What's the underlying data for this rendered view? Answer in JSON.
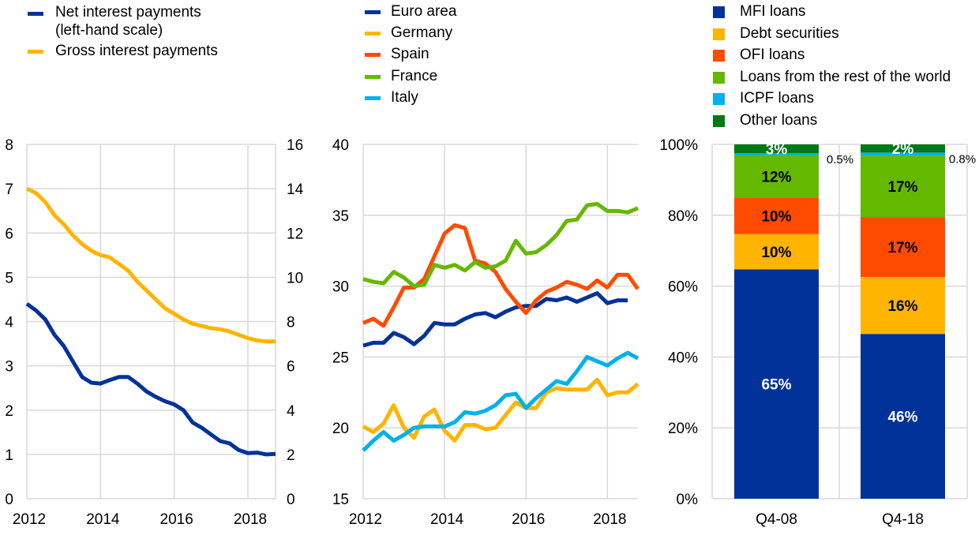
{
  "colors": {
    "navy": "#003299",
    "yellow": "#FFB400",
    "red": "#FF4B00",
    "green": "#65B800",
    "cyan": "#00B1EA",
    "darkgreen": "#007816",
    "grid": "#D9D9D9"
  },
  "chart_data": [
    {
      "type": "line",
      "x_start": 2012,
      "x_step": 0.25,
      "xticks": [
        "2012",
        "2014",
        "2016",
        "2018"
      ],
      "xlim": [
        2012,
        2018.75
      ],
      "ylim_left": [
        0,
        8
      ],
      "yticks_left": [
        "0",
        "1",
        "2",
        "3",
        "4",
        "5",
        "6",
        "7",
        "8"
      ],
      "ylim_right": [
        0,
        16
      ],
      "yticks_right": [
        "0",
        "2",
        "4",
        "6",
        "8",
        "10",
        "12",
        "14",
        "16"
      ],
      "grid": true,
      "legend": [
        "Net interest payments",
        "(left-hand scale)",
        "Gross interest payments"
      ],
      "series": [
        {
          "name": "Net interest payments (left-hand scale)",
          "axis": "left",
          "color": "#003299",
          "values": [
            4.4,
            4.25,
            4.05,
            3.7,
            3.45,
            3.1,
            2.75,
            2.62,
            2.6,
            2.68,
            2.75,
            2.75,
            2.6,
            2.42,
            2.3,
            2.2,
            2.13,
            2.0,
            1.72,
            1.6,
            1.45,
            1.3,
            1.25,
            1.1,
            1.03,
            1.04,
            1.0,
            1.01
          ]
        },
        {
          "name": "Gross interest payments",
          "axis": "right",
          "color": "#FFB400",
          "values": [
            14,
            13.8,
            13.4,
            12.8,
            12.4,
            11.9,
            11.5,
            11.2,
            11.0,
            10.9,
            10.6,
            10.3,
            9.8,
            9.4,
            9.0,
            8.6,
            8.35,
            8.1,
            7.9,
            7.8,
            7.7,
            7.65,
            7.55,
            7.4,
            7.25,
            7.15,
            7.1,
            7.1
          ]
        }
      ]
    },
    {
      "type": "line",
      "x_start": 2012,
      "x_step": 0.25,
      "xticks": [
        "2012",
        "2014",
        "2016",
        "2018"
      ],
      "xlim": [
        2012,
        2018.75
      ],
      "ylim": [
        15,
        40
      ],
      "yticks": [
        "15",
        "20",
        "25",
        "30",
        "35",
        "40"
      ],
      "grid": true,
      "series": [
        {
          "name": "Euro area",
          "color": "#003299",
          "values": [
            25.8,
            26.0,
            26.0,
            26.7,
            26.4,
            25.9,
            26.5,
            27.4,
            27.3,
            27.3,
            27.7,
            28.0,
            28.1,
            27.8,
            28.2,
            28.5,
            28.6,
            28.6,
            29.1,
            29.0,
            29.2,
            28.9,
            29.2,
            29.5,
            28.8,
            29.0,
            29.0
          ]
        },
        {
          "name": "Germany",
          "color": "#FFB400",
          "values": [
            20.1,
            19.7,
            20.3,
            21.6,
            20.0,
            19.3,
            20.8,
            21.3,
            19.8,
            19.1,
            20.2,
            20.2,
            19.9,
            20.0,
            20.9,
            21.8,
            21.4,
            21.4,
            22.5,
            22.8,
            22.7,
            22.7,
            22.7,
            23.4,
            22.3,
            22.5,
            22.5,
            23.1
          ]
        },
        {
          "name": "Spain",
          "color": "#FF4B00",
          "values": [
            27.4,
            27.7,
            27.2,
            28.5,
            29.9,
            29.9,
            30.5,
            32.1,
            33.7,
            34.3,
            34.1,
            31.8,
            31.6,
            31.0,
            29.8,
            28.9,
            28.1,
            29.0,
            29.6,
            29.9,
            30.3,
            30.1,
            29.8,
            30.4,
            29.9,
            30.8,
            30.8,
            29.8
          ]
        },
        {
          "name": "France",
          "color": "#65B800",
          "values": [
            30.5,
            30.3,
            30.2,
            31.0,
            30.6,
            30.0,
            30.1,
            31.5,
            31.3,
            31.5,
            31.1,
            31.7,
            31.3,
            31.4,
            31.8,
            33.2,
            32.3,
            32.4,
            32.9,
            33.6,
            34.6,
            34.7,
            35.7,
            35.8,
            35.3,
            35.3,
            35.2,
            35.5
          ]
        },
        {
          "name": "Italy",
          "color": "#00B1EA",
          "values": [
            18.4,
            19.1,
            19.7,
            19.1,
            19.5,
            20.0,
            20.1,
            20.1,
            20.1,
            20.4,
            21.1,
            21.0,
            21.2,
            21.6,
            22.3,
            22.4,
            21.4,
            22.1,
            22.7,
            23.3,
            23.1,
            24.0,
            25.0,
            24.7,
            24.4,
            24.9,
            25.3,
            24.9
          ]
        }
      ]
    },
    {
      "type": "bar",
      "stacked": true,
      "categories": [
        "Q4-08",
        "Q4-18"
      ],
      "ylim": [
        0,
        100
      ],
      "yticks": [
        "0%",
        "20%",
        "40%",
        "60%",
        "80%",
        "100%"
      ],
      "grid": true,
      "series": [
        {
          "name": "MFI loans",
          "color": "#003299",
          "values": [
            64.7,
            46.5
          ],
          "labels": [
            "65%",
            "46%"
          ],
          "label_color": "#FFFFFF"
        },
        {
          "name": "Debt securities",
          "color": "#FFB400",
          "values": [
            10.0,
            16.1
          ],
          "labels": [
            "10%",
            "16%"
          ],
          "label_color": "#000000"
        },
        {
          "name": "OFI loans",
          "color": "#FF4B00",
          "values": [
            10.3,
            16.9
          ],
          "labels": [
            "10%",
            "17%"
          ],
          "label_color": "#000000"
        },
        {
          "name": "Loans from the rest of the world",
          "color": "#65B800",
          "values": [
            12.0,
            17.4
          ],
          "labels": [
            "12%",
            "17%"
          ],
          "label_color": "#000000"
        },
        {
          "name": "ICPF loans",
          "color": "#00B1EA",
          "values": [
            0.5,
            0.8
          ],
          "labels": [
            "0.5%",
            "0.8%"
          ],
          "label_color": "#000000",
          "label_outside": true
        },
        {
          "name": "Other loans",
          "color": "#007816",
          "values": [
            2.5,
            2.3
          ],
          "labels": [
            "3%",
            "2%"
          ],
          "label_color": "#FFFFFF"
        }
      ]
    }
  ]
}
